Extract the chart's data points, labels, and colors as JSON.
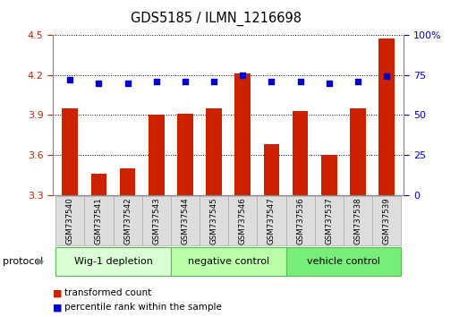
{
  "title": "GDS5185 / ILMN_1216698",
  "samples": [
    "GSM737540",
    "GSM737541",
    "GSM737542",
    "GSM737543",
    "GSM737544",
    "GSM737545",
    "GSM737546",
    "GSM737547",
    "GSM737536",
    "GSM737537",
    "GSM737538",
    "GSM737539"
  ],
  "bar_values": [
    3.95,
    3.46,
    3.5,
    3.9,
    3.91,
    3.95,
    4.21,
    3.68,
    3.93,
    3.6,
    3.95,
    4.47
  ],
  "dot_values": [
    72,
    70,
    70,
    71,
    71,
    71,
    75,
    71,
    71,
    70,
    71,
    74
  ],
  "ylim_left": [
    3.3,
    4.5
  ],
  "ylim_right": [
    0,
    100
  ],
  "yticks_left": [
    3.3,
    3.6,
    3.9,
    4.2,
    4.5
  ],
  "yticks_right": [
    0,
    25,
    50,
    75,
    100
  ],
  "bar_color": "#cc2200",
  "dot_color": "#0000cc",
  "groups": [
    {
      "label": "Wig-1 depletion",
      "start": 0,
      "end": 3,
      "color": "#ddffd8"
    },
    {
      "label": "negative control",
      "start": 4,
      "end": 7,
      "color": "#bbffaa"
    },
    {
      "label": "vehicle control",
      "start": 8,
      "end": 11,
      "color": "#77ee77"
    }
  ],
  "protocol_label": "protocol",
  "legend_bar_label": "transformed count",
  "legend_dot_label": "percentile rank within the sample",
  "sample_box_color": "#dddddd",
  "sample_box_edge": "#aaaaaa"
}
